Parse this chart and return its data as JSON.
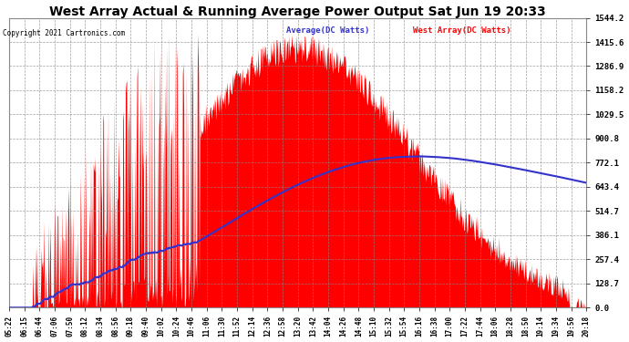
{
  "title": "West Array Actual & Running Average Power Output Sat Jun 19 20:33",
  "copyright": "Copyright 2021 Cartronics.com",
  "legend_avg": "Average(DC Watts)",
  "legend_west": "West Array(DC Watts)",
  "ylabel_values": [
    0.0,
    128.7,
    257.4,
    386.1,
    514.7,
    643.4,
    772.1,
    900.8,
    1029.5,
    1158.2,
    1286.9,
    1415.6,
    1544.2
  ],
  "ymax": 1544.2,
  "bg_color": "#ffffff",
  "plot_bg": "#ffffff",
  "grid_color": "#aaaaaa",
  "title_color": "#000000",
  "red_color": "#ff0000",
  "avg_color": "#3333cc",
  "xtick_labels": [
    "05:22",
    "06:15",
    "06:44",
    "07:06",
    "07:50",
    "08:12",
    "08:34",
    "08:56",
    "09:18",
    "09:40",
    "10:02",
    "10:24",
    "10:46",
    "11:06",
    "11:30",
    "11:52",
    "12:14",
    "12:36",
    "12:58",
    "13:20",
    "13:42",
    "14:04",
    "14:26",
    "14:48",
    "15:10",
    "15:32",
    "15:54",
    "16:16",
    "16:38",
    "17:00",
    "17:22",
    "17:44",
    "18:06",
    "18:28",
    "18:50",
    "19:14",
    "19:34",
    "19:56",
    "20:18"
  ],
  "figsize": [
    6.9,
    3.75
  ],
  "dpi": 100
}
